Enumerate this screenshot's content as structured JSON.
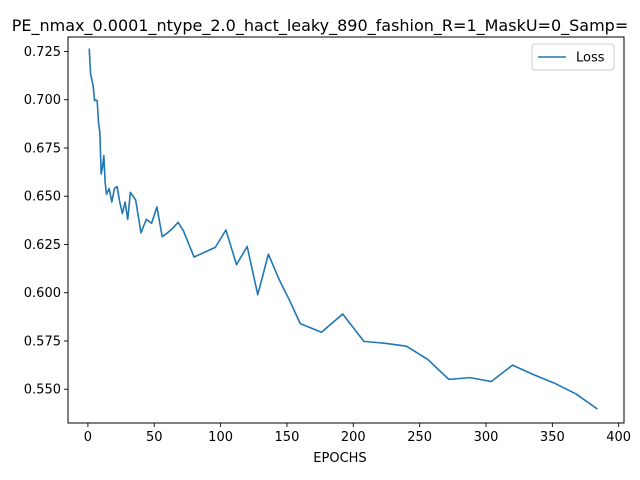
{
  "chart_data": {
    "type": "line",
    "title": "PE_nmax_0.0001_ntype_2.0_hact_leaky_890_fashion_R=1_MaskU=0_Samp=",
    "xlabel": "EPOCHS",
    "ylabel": "",
    "xlim": [
      -15,
      404
    ],
    "ylim": [
      0.5325,
      0.7325
    ],
    "xticks": [
      0,
      50,
      100,
      150,
      200,
      250,
      300,
      350,
      400
    ],
    "yticks": [
      0.55,
      0.575,
      0.6,
      0.625,
      0.65,
      0.675,
      0.7,
      0.725
    ],
    "xtick_labels": [
      "0",
      "50",
      "100",
      "150",
      "200",
      "250",
      "300",
      "350",
      "400"
    ],
    "ytick_labels": [
      "0.550",
      "0.575",
      "0.600",
      "0.625",
      "0.650",
      "0.675",
      "0.700",
      "0.725"
    ],
    "grid": false,
    "legend_position": "top-right",
    "series": [
      {
        "name": "Loss",
        "color": "#1f77b4",
        "x": [
          1,
          2,
          4,
          5,
          6,
          7,
          8,
          9,
          10,
          11,
          12,
          13,
          14,
          16,
          18,
          20,
          22,
          24,
          26,
          28,
          30,
          32,
          36,
          40,
          44,
          48,
          52,
          56,
          60,
          64,
          68,
          72,
          80,
          96,
          104,
          112,
          120,
          128,
          136,
          144,
          152,
          160,
          176,
          192,
          208,
          224,
          240,
          256,
          272,
          288,
          304,
          320,
          336,
          352,
          368,
          384
        ],
        "values": [
          0.7265,
          0.7135,
          0.707,
          0.6995,
          0.6999,
          0.6994,
          0.688,
          0.683,
          0.6615,
          0.665,
          0.671,
          0.657,
          0.651,
          0.654,
          0.647,
          0.654,
          0.655,
          0.647,
          0.641,
          0.647,
          0.638,
          0.652,
          0.648,
          0.631,
          0.638,
          0.636,
          0.6445,
          0.629,
          0.631,
          0.6335,
          0.6365,
          0.632,
          0.6185,
          0.6235,
          0.6325,
          0.6145,
          0.624,
          0.599,
          0.62,
          0.607,
          0.596,
          0.584,
          0.5795,
          0.589,
          0.5748,
          0.5738,
          0.5723,
          0.5655,
          0.5551,
          0.556,
          0.554,
          0.5625,
          0.5575,
          0.553,
          0.5475,
          0.5397
        ]
      }
    ]
  }
}
